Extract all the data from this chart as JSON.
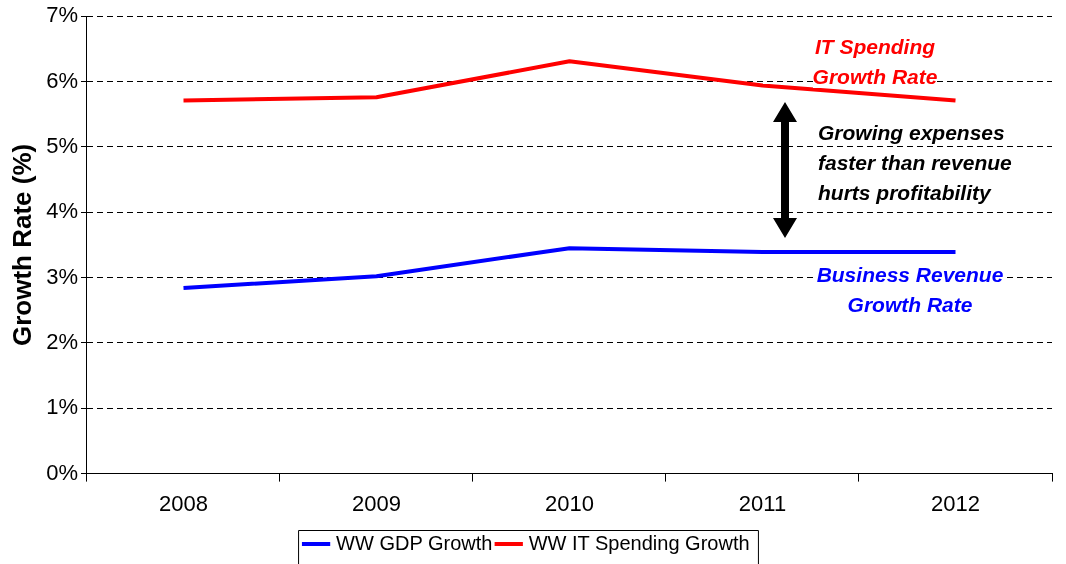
{
  "chart_data": {
    "type": "line",
    "ylabel": "Growth Rate (%)",
    "categories": [
      "2008",
      "2009",
      "2010",
      "2011",
      "2012"
    ],
    "series": [
      {
        "name": "WW GDP Growth",
        "color": "#0000ff",
        "values": [
          2.84,
          3.02,
          3.45,
          3.39,
          3.39
        ]
      },
      {
        "name": "WW IT Spending Growth",
        "color": "#ff0000",
        "values": [
          5.71,
          5.76,
          6.31,
          5.94,
          5.71
        ]
      }
    ],
    "ylim": [
      0,
      7
    ],
    "yticks": [
      {
        "value": 0,
        "label": "0%"
      },
      {
        "value": 1,
        "label": "1%"
      },
      {
        "value": 2,
        "label": "2%"
      },
      {
        "value": 3,
        "label": "3%"
      },
      {
        "value": 4,
        "label": "4%"
      },
      {
        "value": 5,
        "label": "5%"
      },
      {
        "value": 6,
        "label": "6%"
      },
      {
        "value": 7,
        "label": "7%"
      }
    ],
    "grid": "y",
    "legend": "bottom",
    "marker": "none",
    "line_style": "solid",
    "annotations": [
      "IT Spending Growth Rate",
      "Business Revenue Growth Rate",
      "Growing expenses faster than revenue hurts profitability"
    ]
  }
}
